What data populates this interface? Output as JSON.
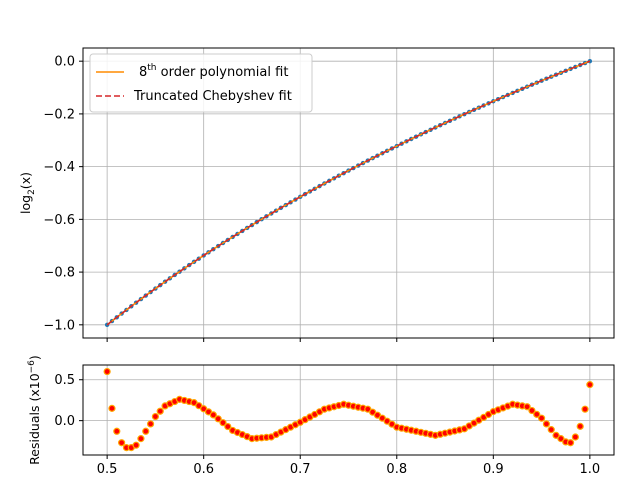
{
  "chart_data": [
    {
      "type": "line",
      "panel": "main",
      "title": "",
      "xlabel": "",
      "ylabel_prefix": "log",
      "ylabel_sub": "2",
      "ylabel_suffix": "(x)",
      "xlim": [
        0.475,
        1.025
      ],
      "ylim": [
        -1.05,
        0.05
      ],
      "x_ticks": [
        0.5,
        0.6,
        0.7,
        0.8,
        0.9,
        1.0
      ],
      "y_ticks": [
        0.0,
        -0.2,
        -0.4,
        -0.6,
        -0.8,
        -1.0
      ],
      "y_tick_labels": [
        "0.0",
        "−0.2",
        "−0.4",
        "−0.6",
        "−0.8",
        "−1.0"
      ],
      "grid": true,
      "legend_position": "top-left",
      "function": "log2(x)",
      "x_range": [
        0.5,
        1.0
      ],
      "n_points": 101,
      "series": [
        {
          "name": "8th order polynomial fit",
          "name_prefix": "8",
          "name_sup": "th",
          "name_suffix": " order polynomial fit",
          "style": "solid",
          "color": "#ff8c00"
        },
        {
          "name": "Truncated Chebyshev fit",
          "style": "dashed",
          "color": "#d62728"
        },
        {
          "name": "data",
          "style": "markers",
          "color": "#1f77b4",
          "legend": false
        }
      ]
    },
    {
      "type": "scatter",
      "panel": "residuals",
      "title": "",
      "xlabel": "",
      "ylabel_prefix": "Residuals (x10",
      "ylabel_sup": "−6",
      "ylabel_suffix": ")",
      "xlim": [
        0.475,
        1.025
      ],
      "ylim": [
        -0.42,
        0.68
      ],
      "x_ticks": [
        0.5,
        0.6,
        0.7,
        0.8,
        0.9,
        1.0
      ],
      "x_tick_labels": [
        "0.5",
        "0.6",
        "0.7",
        "0.8",
        "0.9",
        "1.0"
      ],
      "y_ticks": [
        0.5,
        0.0
      ],
      "y_tick_labels": [
        "0.5",
        "0.0"
      ],
      "grid": true,
      "marker_fill": "#ff0000",
      "marker_edge": "#ffa500",
      "residual_knots": {
        "x": [
          0.5,
          0.505,
          0.51,
          0.515,
          0.52,
          0.525,
          0.53,
          0.535,
          0.54,
          0.55,
          0.56,
          0.575,
          0.59,
          0.61,
          0.63,
          0.65,
          0.67,
          0.7,
          0.725,
          0.745,
          0.77,
          0.8,
          0.84,
          0.87,
          0.9,
          0.92,
          0.935,
          0.95,
          0.965,
          0.975,
          0.98,
          0.985,
          0.99,
          0.995,
          1.0
        ],
        "y": [
          0.6,
          0.15,
          -0.13,
          -0.27,
          -0.33,
          -0.33,
          -0.3,
          -0.22,
          -0.13,
          0.05,
          0.18,
          0.26,
          0.22,
          0.07,
          -0.12,
          -0.22,
          -0.2,
          -0.02,
          0.14,
          0.2,
          0.14,
          -0.08,
          -0.18,
          -0.1,
          0.11,
          0.2,
          0.17,
          0.03,
          -0.18,
          -0.26,
          -0.27,
          -0.2,
          -0.07,
          0.14,
          0.44
        ]
      }
    }
  ]
}
